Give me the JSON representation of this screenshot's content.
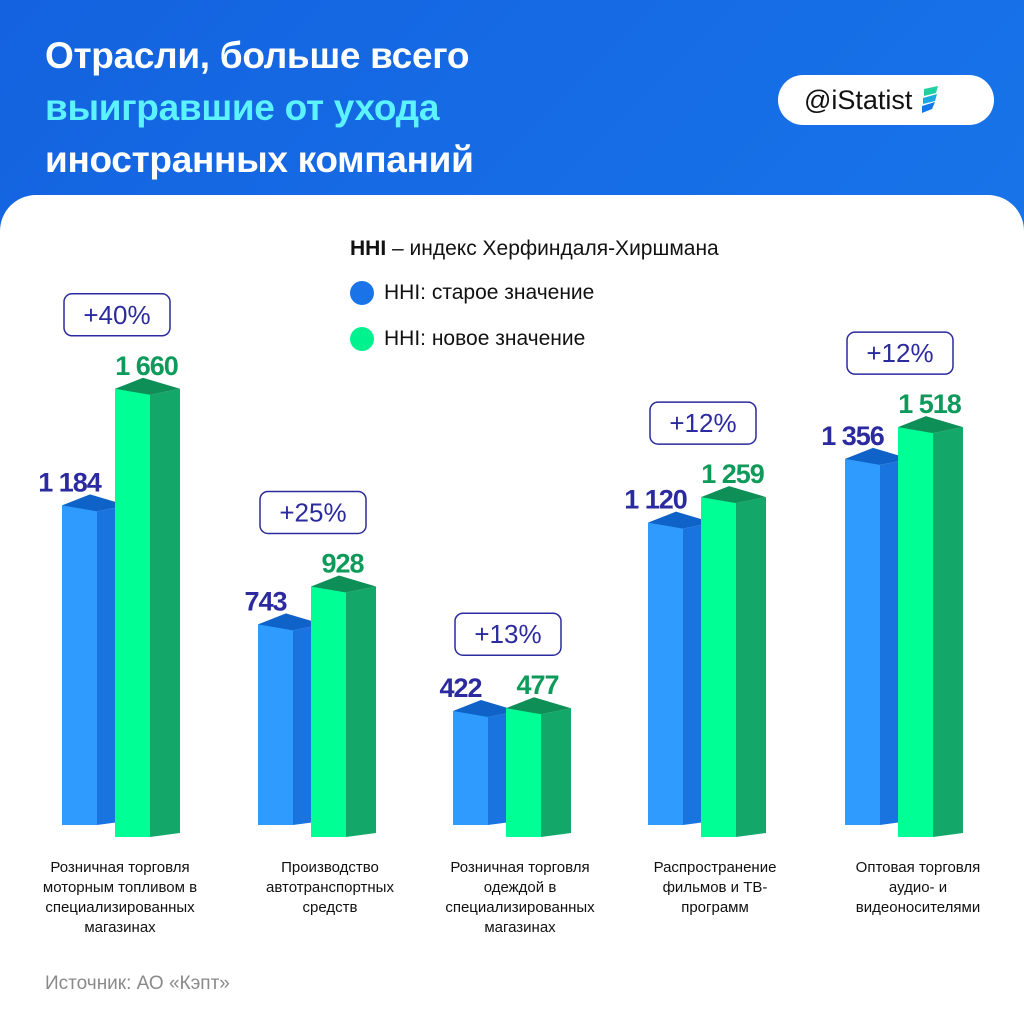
{
  "header": {
    "title_line1": "Отрасли, больше всего",
    "title_line2": "выигравшие от ухода",
    "title_line3": "иностранных компаний"
  },
  "logo": {
    "text": "@iStatist"
  },
  "legend": {
    "abbr": "HHI",
    "definition": " – индекс Херфиндаля-Хиршмана",
    "old": "HHI: старое значение",
    "new": "HHI: новое значение"
  },
  "source": "Источник: АО «Кэпт»",
  "colors": {
    "old": "#2f9bff",
    "new": "#00ff95",
    "old_label": "#2b2a9e",
    "new_label": "#0e9a5a"
  },
  "chart_data": {
    "type": "bar",
    "categories": [
      "Розничная торговля моторным топливом в специализированных магазинах",
      "Производство автотранспортных средств",
      "Розничная торговля одеждой в специализированных магазинах",
      "Распространение фильмов и ТВ-программ",
      "Оптовая торговля аудио- и видеоносителями"
    ],
    "series": [
      {
        "name": "HHI: старое значение",
        "values": [
          1184,
          743,
          422,
          1120,
          1356
        ],
        "labels": [
          "1 184",
          "743",
          "422",
          "1 120",
          "1 356"
        ]
      },
      {
        "name": "HHI: новое значение",
        "values": [
          1660,
          928,
          477,
          1259,
          1518
        ],
        "labels": [
          "1 660",
          "928",
          "477",
          "1 259",
          "1 518"
        ]
      }
    ],
    "changes": [
      "+40%",
      "+25%",
      "+13%",
      "+12%",
      "+12%"
    ]
  }
}
